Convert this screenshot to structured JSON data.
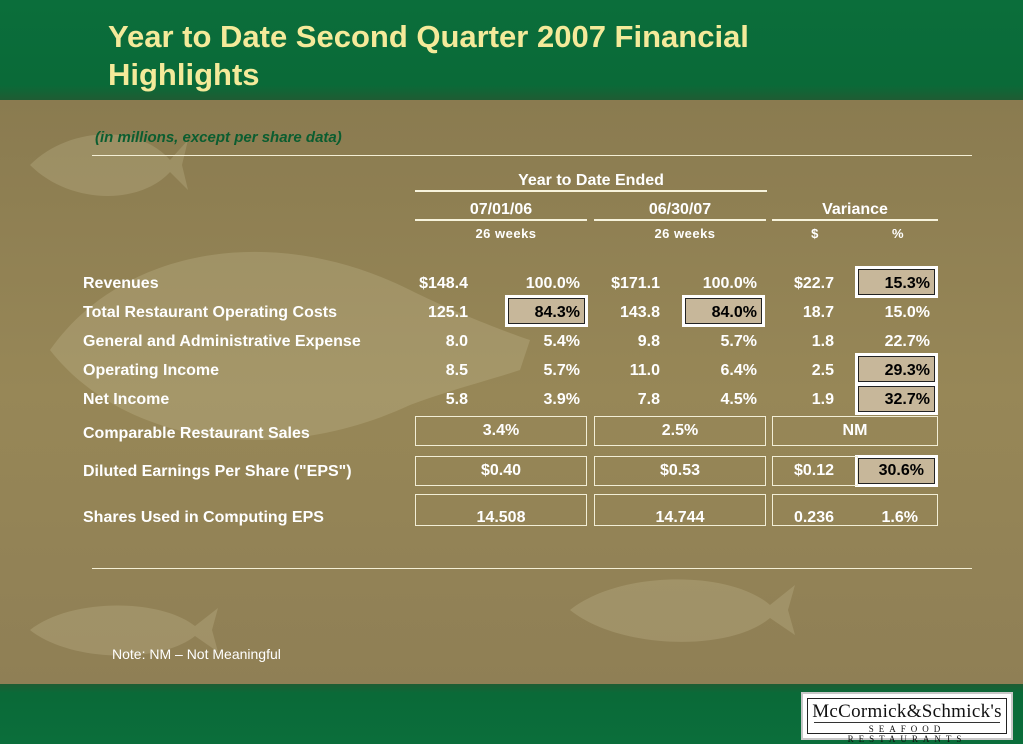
{
  "title": "Year to Date Second Quarter 2007 Financial Highlights",
  "subtitle": "(in millions, except per share data)",
  "headers": {
    "group": "Year to Date Ended",
    "period1": "07/01/06",
    "period2": "06/30/07",
    "variance": "Variance",
    "weeks1": "26 weeks",
    "weeks2": "26 weeks",
    "dollar": "$",
    "percent": "%"
  },
  "rows": [
    {
      "label": "Revenues",
      "v1": "$148.4",
      "p1": "100.0%",
      "v2": "$171.1",
      "p2": "100.0%",
      "vd": "$22.7",
      "vp": "15.3%"
    },
    {
      "label": "Total Restaurant Operating Costs",
      "v1": "125.1",
      "p1": "84.3%",
      "v2": "143.8",
      "p2": "84.0%",
      "vd": "18.7",
      "vp": "15.0%"
    },
    {
      "label": "General and Administrative Expense",
      "v1": "8.0",
      "p1": "5.4%",
      "v2": "9.8",
      "p2": "5.7%",
      "vd": "1.8",
      "vp": "22.7%"
    },
    {
      "label": "Operating Income",
      "v1": "8.5",
      "p1": "5.7%",
      "v2": "11.0",
      "p2": "6.4%",
      "vd": "2.5",
      "vp": "29.3%"
    },
    {
      "label": "Net Income",
      "v1": "5.8",
      "p1": "3.9%",
      "v2": "7.8",
      "p2": "4.5%",
      "vd": "1.9",
      "vp": "32.7%"
    }
  ],
  "comparable": {
    "label": "Comparable Restaurant Sales",
    "v1": "3.4%",
    "v2": "2.5%",
    "var": "NM"
  },
  "eps": {
    "label": "Diluted Earnings Per Share (\"EPS\")",
    "v1": "$0.40",
    "v2": "$0.53",
    "vd": "$0.12",
    "vp": "30.6%"
  },
  "shares": {
    "label": "Shares Used in Computing EPS",
    "v1": "14.508",
    "v2": "14.744",
    "vd": "0.236",
    "vp": "1.6%"
  },
  "note": "Note: NM – Not Meaningful",
  "logo": {
    "line1": "McCormick&Schmick's",
    "line2": "SEAFOOD RESTAURANTS"
  }
}
